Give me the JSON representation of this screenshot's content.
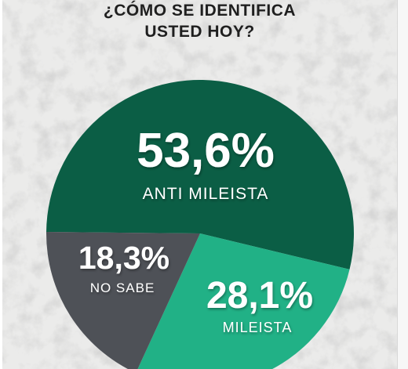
{
  "chart_data": {
    "type": "pie",
    "title_lines": [
      "¿CÓMO SE IDENTIFICA",
      "USTED HOY?"
    ],
    "slices": [
      {
        "label": "ANTI MILEISTA",
        "value": 53.6,
        "value_text": "53,6%",
        "color": "#0b5e45"
      },
      {
        "label": "MILEISTA",
        "value": 28.1,
        "value_text": "28,1%",
        "color": "#21b186"
      },
      {
        "label": "NO SABE",
        "value": 18.3,
        "value_text": "18,3%",
        "color": "#4e5157"
      }
    ]
  }
}
